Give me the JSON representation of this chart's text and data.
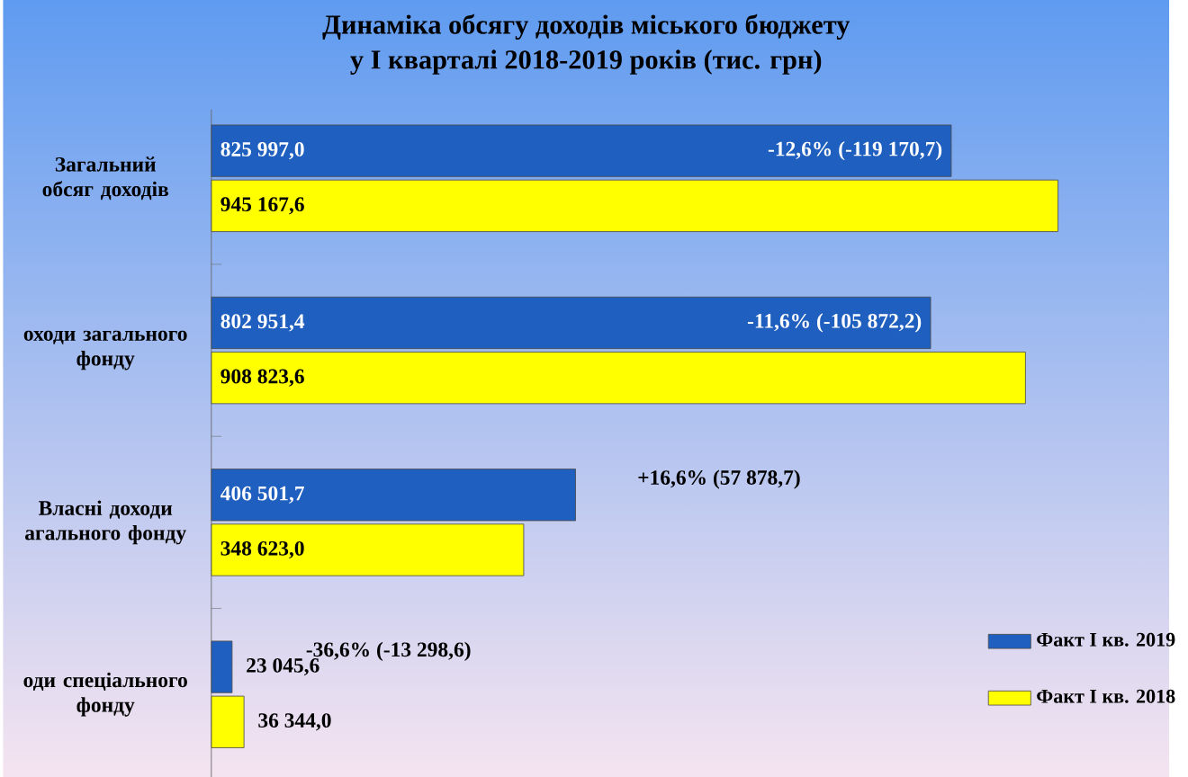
{
  "chart_data": {
    "type": "bar",
    "orientation": "horizontal",
    "title": "Динаміка обсягу доходів міського бюджету",
    "subtitle": "у I кварталі 2018-2019 років **(тис. грн)**",
    "categories": [
      "Загальний обсяг доходів",
      "оходи загального фонду",
      "Власні доходи агального фонду",
      "оди спеціального фонду"
    ],
    "series": [
      {
        "name": "Факт I кв. 2019",
        "color": "#1f5fbf",
        "values": [
          825997.0,
          802951.4,
          406501.7,
          23045.6
        ],
        "value_labels": [
          "825 997,0",
          "802 951,4",
          "406 501,7",
          "23 045,6"
        ]
      },
      {
        "name": "Факт I кв. 2018",
        "color": "#ffff00",
        "values": [
          945167.6,
          908823.6,
          348623.0,
          36344.0
        ],
        "value_labels": [
          "945 167,6",
          "908 823,6",
          "348 623,0",
          "36 344,0"
        ]
      }
    ],
    "annotations": [
      "-12,6% (-119 170,7)",
      "-11,6% (-105 872,2)",
      "+16,6% (57 878,7)",
      "-36,6% (-13 298,6)"
    ],
    "legend": "bottom right"
  }
}
